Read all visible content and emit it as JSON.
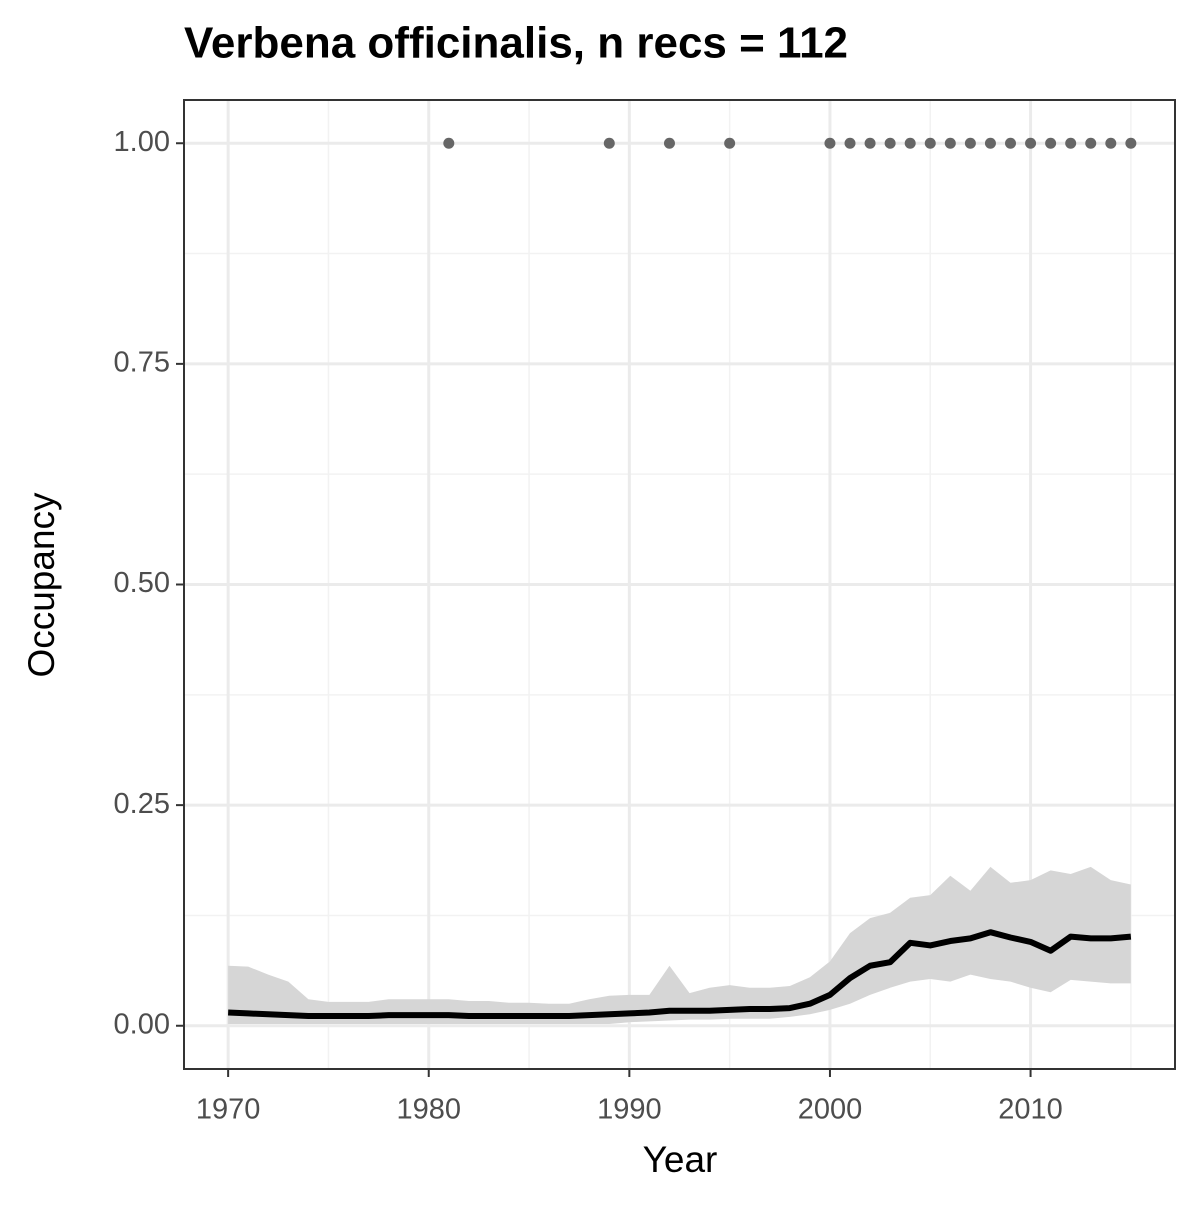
{
  "chart_data": {
    "type": "line",
    "title": "Verbena officinalis, n recs = 112",
    "x_label": "Year",
    "y_label": "Occupancy",
    "x": [
      1970,
      1971,
      1972,
      1973,
      1974,
      1975,
      1976,
      1977,
      1978,
      1979,
      1980,
      1981,
      1982,
      1983,
      1984,
      1985,
      1986,
      1987,
      1988,
      1989,
      1990,
      1991,
      1992,
      1993,
      1994,
      1995,
      1996,
      1997,
      1998,
      1999,
      2000,
      2001,
      2002,
      2003,
      2004,
      2005,
      2006,
      2007,
      2008,
      2009,
      2010,
      2011,
      2012,
      2013,
      2014,
      2015
    ],
    "values": [
      0.015,
      0.014,
      0.013,
      0.012,
      0.011,
      0.011,
      0.011,
      0.011,
      0.012,
      0.012,
      0.012,
      0.012,
      0.011,
      0.011,
      0.011,
      0.011,
      0.011,
      0.011,
      0.012,
      0.013,
      0.014,
      0.015,
      0.017,
      0.017,
      0.017,
      0.018,
      0.019,
      0.019,
      0.02,
      0.025,
      0.035,
      0.054,
      0.068,
      0.072,
      0.094,
      0.091,
      0.096,
      0.099,
      0.106,
      0.1,
      0.095,
      0.085,
      0.101,
      0.099,
      0.099,
      0.101
    ],
    "lower": [
      0.002,
      0.002,
      0.002,
      0.002,
      0.002,
      0.002,
      0.002,
      0.002,
      0.002,
      0.002,
      0.002,
      0.002,
      0.002,
      0.002,
      0.002,
      0.002,
      0.002,
      0.002,
      0.002,
      0.002,
      0.004,
      0.005,
      0.006,
      0.007,
      0.007,
      0.008,
      0.008,
      0.008,
      0.01,
      0.013,
      0.018,
      0.025,
      0.035,
      0.043,
      0.05,
      0.053,
      0.05,
      0.058,
      0.053,
      0.05,
      0.043,
      0.038,
      0.052,
      0.05,
      0.048,
      0.048
    ],
    "upper": [
      0.068,
      0.067,
      0.058,
      0.05,
      0.03,
      0.027,
      0.027,
      0.027,
      0.03,
      0.03,
      0.03,
      0.03,
      0.028,
      0.028,
      0.026,
      0.026,
      0.025,
      0.025,
      0.03,
      0.034,
      0.035,
      0.035,
      0.068,
      0.037,
      0.043,
      0.046,
      0.043,
      0.043,
      0.045,
      0.055,
      0.073,
      0.105,
      0.122,
      0.128,
      0.145,
      0.148,
      0.17,
      0.153,
      0.18,
      0.162,
      0.165,
      0.176,
      0.172,
      0.18,
      0.165,
      0.16
    ],
    "points": {
      "x": [
        1981,
        1989,
        1992,
        1995,
        2000,
        2001,
        2002,
        2003,
        2004,
        2005,
        2006,
        2007,
        2008,
        2009,
        2010,
        2011,
        2012,
        2013,
        2014,
        2015
      ],
      "values": [
        1,
        1,
        1,
        1,
        1,
        1,
        1,
        1,
        1,
        1,
        1,
        1,
        1,
        1,
        1,
        1,
        1,
        1,
        1,
        1
      ],
      "color": "#666666"
    },
    "color": "#000000",
    "band_color": "#d6d6d6",
    "xlim": [
      1967.8,
      2017.2
    ],
    "ylim": [
      -0.049,
      1.049
    ],
    "xticks": [
      1970,
      1980,
      1990,
      2000,
      2010
    ],
    "yticks": [
      {
        "value": 0,
        "label": "0.00"
      },
      {
        "value": 0.25,
        "label": "0.25"
      },
      {
        "value": 0.5,
        "label": "0.50"
      },
      {
        "value": 0.75,
        "label": "0.75"
      },
      {
        "value": 1,
        "label": "1.00"
      }
    ],
    "grid": true
  }
}
